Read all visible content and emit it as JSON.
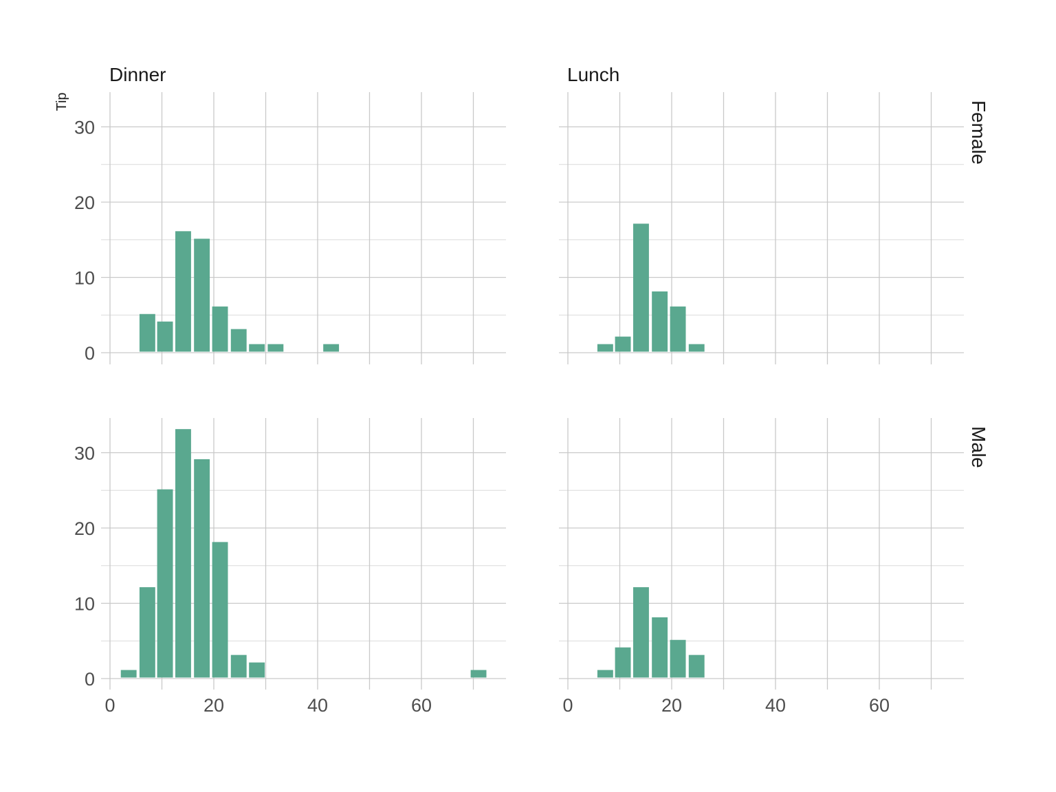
{
  "chart_data": {
    "type": "bar",
    "ylabel": "Tip",
    "xlabel": "",
    "bin_width": 3.35,
    "xlim": [
      0,
      75
    ],
    "ylim": [
      0,
      35
    ],
    "x_ticks": [
      0,
      20,
      40,
      60
    ],
    "y_ticks": [
      0,
      10,
      20,
      30
    ],
    "bar_color": "#5aa88f",
    "grid": true,
    "col_facets": [
      "Dinner",
      "Lunch"
    ],
    "row_facets": [
      "Female",
      "Male"
    ],
    "panels": [
      {
        "col": "Dinner",
        "row": "Female",
        "bins": [
          {
            "x": 7.2,
            "count": 5
          },
          {
            "x": 10.6,
            "count": 4
          },
          {
            "x": 14.1,
            "count": 16
          },
          {
            "x": 17.7,
            "count": 15
          },
          {
            "x": 21.2,
            "count": 6
          },
          {
            "x": 24.8,
            "count": 3
          },
          {
            "x": 28.3,
            "count": 1
          },
          {
            "x": 31.9,
            "count": 1
          },
          {
            "x": 42.6,
            "count": 1
          }
        ]
      },
      {
        "col": "Lunch",
        "row": "Female",
        "bins": [
          {
            "x": 7.2,
            "count": 1
          },
          {
            "x": 10.6,
            "count": 2
          },
          {
            "x": 14.1,
            "count": 17
          },
          {
            "x": 17.7,
            "count": 8
          },
          {
            "x": 21.2,
            "count": 6
          },
          {
            "x": 24.8,
            "count": 1
          }
        ]
      },
      {
        "col": "Dinner",
        "row": "Male",
        "bins": [
          {
            "x": 3.6,
            "count": 1
          },
          {
            "x": 7.2,
            "count": 12
          },
          {
            "x": 10.6,
            "count": 25
          },
          {
            "x": 14.1,
            "count": 33
          },
          {
            "x": 17.7,
            "count": 29
          },
          {
            "x": 21.2,
            "count": 18
          },
          {
            "x": 24.8,
            "count": 3
          },
          {
            "x": 28.3,
            "count": 2
          },
          {
            "x": 71.0,
            "count": 1
          }
        ]
      },
      {
        "col": "Lunch",
        "row": "Male",
        "bins": [
          {
            "x": 7.2,
            "count": 1
          },
          {
            "x": 10.6,
            "count": 4
          },
          {
            "x": 14.1,
            "count": 12
          },
          {
            "x": 17.7,
            "count": 8
          },
          {
            "x": 21.2,
            "count": 5
          },
          {
            "x": 24.8,
            "count": 3
          }
        ]
      }
    ]
  }
}
